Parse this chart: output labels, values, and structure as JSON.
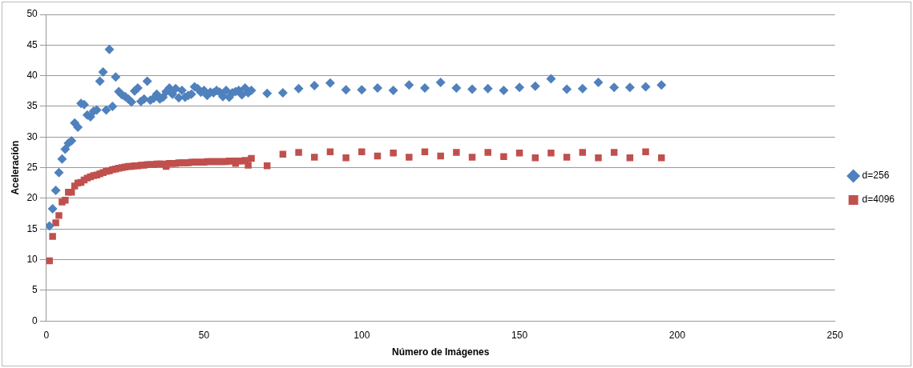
{
  "chart_data": {
    "type": "scatter",
    "xlabel": "Número de Imágenes",
    "ylabel": "Aceleración",
    "xlim": [
      0,
      250
    ],
    "xticks": [
      0,
      50,
      100,
      150,
      200,
      250
    ],
    "ylim": [
      0,
      50
    ],
    "yticks": [
      0,
      5,
      10,
      15,
      20,
      25,
      30,
      35,
      40,
      45,
      50
    ],
    "grid": "y",
    "legend": "right",
    "x": [
      1,
      2,
      3,
      4,
      5,
      6,
      7,
      8,
      9,
      10,
      11,
      12,
      13,
      14,
      15,
      16,
      17,
      18,
      19,
      20,
      21,
      22,
      23,
      24,
      25,
      26,
      27,
      28,
      29,
      30,
      31,
      32,
      33,
      34,
      35,
      36,
      37,
      38,
      39,
      40,
      41,
      42,
      43,
      44,
      45,
      46,
      47,
      48,
      49,
      50,
      51,
      52,
      53,
      54,
      55,
      56,
      57,
      58,
      59,
      60,
      61,
      62,
      63,
      64,
      65,
      70,
      75,
      80,
      85,
      90,
      95,
      100,
      105,
      110,
      115,
      120,
      125,
      130,
      135,
      140,
      145,
      150,
      155,
      160,
      165,
      170,
      175,
      180,
      185,
      190,
      195
    ],
    "series": [
      {
        "name": "d=256",
        "color": "#4f81bd",
        "marker": "diamond",
        "values": [
          15.5,
          18.3,
          21.3,
          24.2,
          26.4,
          28,
          29,
          29.4,
          32.3,
          31.6,
          35.5,
          35.3,
          33.6,
          33.3,
          34.2,
          34.4,
          39.1,
          40.6,
          34.4,
          44.3,
          35,
          39.8,
          37.4,
          36.9,
          36.6,
          36.2,
          35.7,
          37.5,
          38,
          35.8,
          36.2,
          39.1,
          36,
          36.3,
          37,
          36.2,
          36.5,
          37.4,
          38,
          37,
          37.9,
          36.4,
          37.6,
          36.5,
          36.8,
          37,
          38.2,
          37.9,
          37.3,
          37.6,
          36.8,
          37.3,
          37.2,
          37.6,
          37.3,
          36.6,
          37.6,
          36.5,
          37.2,
          37.4,
          37.6,
          36.9,
          38,
          37.2,
          37.6,
          37.1,
          37.2,
          37.9,
          38.4,
          38.8,
          37.7,
          37.7,
          38,
          37.6,
          38.5,
          38,
          38.9,
          38,
          37.8,
          37.9,
          37.6,
          38.1,
          38.3,
          39.5,
          37.8,
          37.9,
          38.9,
          38.1,
          38.1,
          38.2,
          38.5
        ]
      },
      {
        "name": "d=4096",
        "color": "#c0504d",
        "marker": "square",
        "values": [
          9.8,
          13.8,
          16,
          17.2,
          19.4,
          19.7,
          21,
          21,
          22,
          22.5,
          22.6,
          23,
          23.3,
          23.5,
          23.7,
          23.8,
          24,
          24.2,
          24.4,
          24.5,
          24.7,
          24.8,
          24.9,
          25,
          25.1,
          25.2,
          25.2,
          25.3,
          25.3,
          25.4,
          25.4,
          25.5,
          25.5,
          25.5,
          25.6,
          25.6,
          25.6,
          25.2,
          25.7,
          25.7,
          25.7,
          25.8,
          25.8,
          25.8,
          25.8,
          25.9,
          25.9,
          25.9,
          25.9,
          25.9,
          26,
          26,
          26,
          26,
          26,
          26,
          26,
          26.1,
          26.1,
          25.7,
          26.1,
          26.1,
          26.2,
          25.4,
          26.5,
          25.3,
          27.2,
          27.5,
          26.7,
          27.6,
          26.6,
          27.6,
          26.9,
          27.4,
          26.7,
          27.6,
          26.9,
          27.5,
          26.7,
          27.5,
          26.8,
          27.4,
          26.6,
          27.4,
          26.7,
          27.5,
          26.6,
          27.5,
          26.6,
          27.6,
          26.6
        ]
      }
    ]
  }
}
